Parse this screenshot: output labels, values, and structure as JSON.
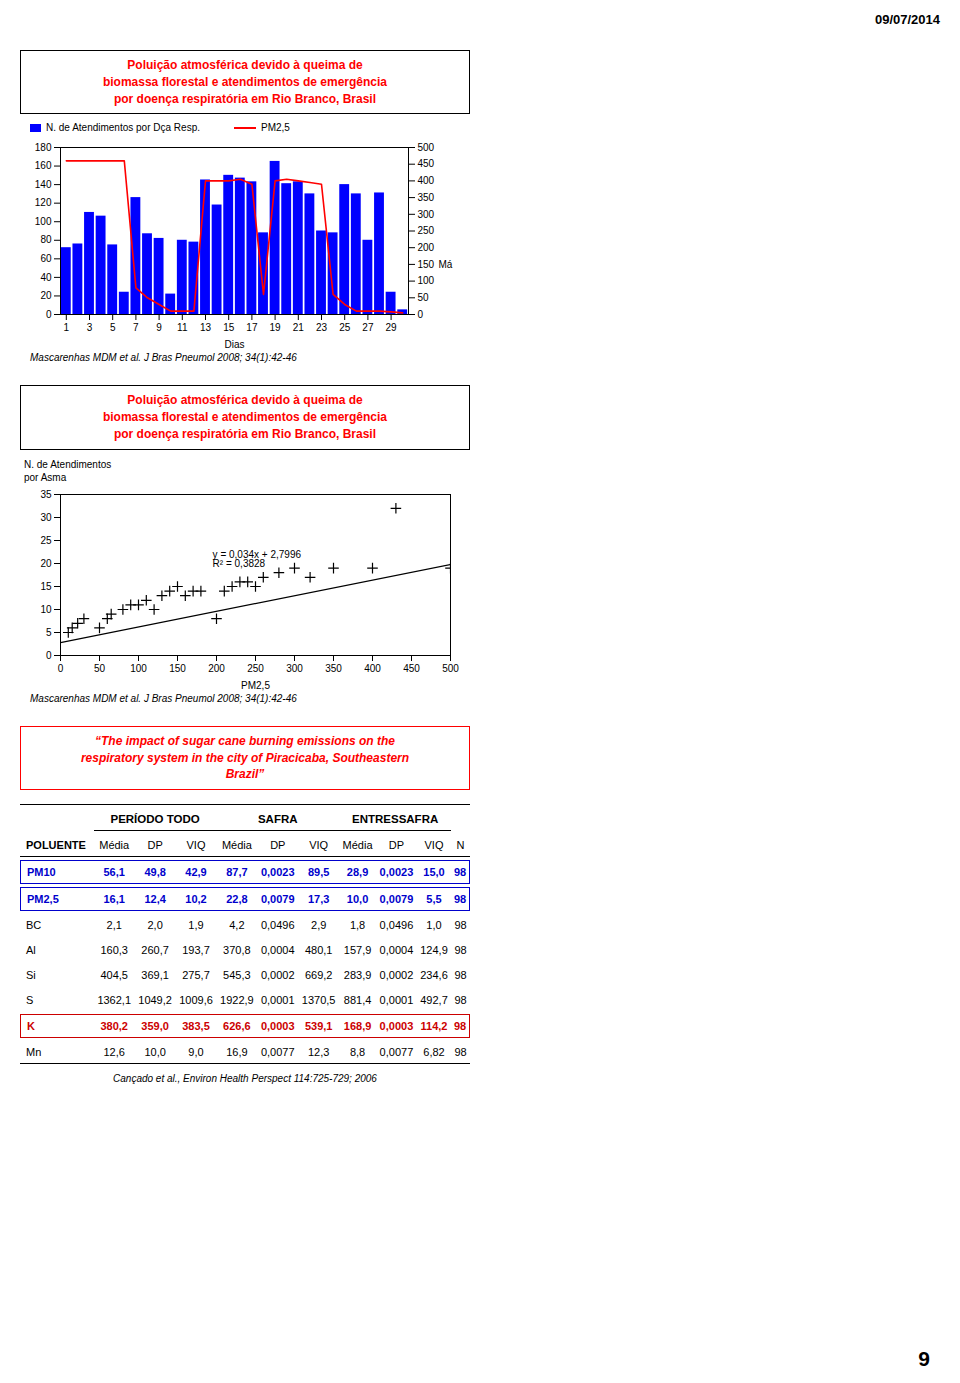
{
  "date": "09/07/2014",
  "page_number": "9",
  "chart_data": [
    {
      "type": "bar",
      "title": "Poluição atmosférica devido à queima de\nbiomassa florestal e atendimentos de emergência\npor doença respiratória em Rio Branco, Brasil",
      "xlabel": "Dias",
      "caption": "Mascarenhas MDM et al. J Bras Pneumol 2008; 34(1):42-46",
      "x": [
        1,
        2,
        3,
        4,
        5,
        6,
        7,
        8,
        9,
        10,
        11,
        12,
        13,
        14,
        15,
        16,
        17,
        18,
        19,
        20,
        21,
        22,
        23,
        24,
        25,
        26,
        27,
        28,
        29,
        30
      ],
      "xlim": [
        0.5,
        30.5
      ],
      "xticks": [
        1,
        3,
        5,
        7,
        9,
        11,
        13,
        15,
        17,
        19,
        21,
        23,
        25,
        27,
        29
      ],
      "ylim": [
        0,
        180
      ],
      "yticks": [
        0,
        20,
        40,
        60,
        80,
        100,
        120,
        140,
        160,
        180
      ],
      "y2lim": [
        0,
        500
      ],
      "y2ticks": [
        0,
        50,
        100,
        150,
        200,
        250,
        300,
        350,
        400,
        450,
        500
      ],
      "legend": "top",
      "series": [
        {
          "name": "N. de Atendimentos por Dça Resp.",
          "type": "bar",
          "color": "#0000FF",
          "values": [
            72,
            76,
            110,
            106,
            75,
            24,
            126,
            87,
            82,
            22,
            80,
            78,
            145,
            118,
            150,
            147,
            143,
            88,
            165,
            141,
            143,
            130,
            90,
            88,
            140,
            130,
            80,
            131,
            24,
            5
          ]
        },
        {
          "name": "PM2,5",
          "type": "line",
          "color": "#FF0000",
          "axis": "y2",
          "values": [
            460,
            460,
            460,
            460,
            460,
            460,
            80,
            50,
            30,
            10,
            10,
            10,
            400,
            400,
            400,
            405,
            390,
            60,
            400,
            405,
            400,
            395,
            390,
            60,
            30,
            10,
            10,
            10,
            8,
            5
          ]
        }
      ],
      "annotations": [
        {
          "text": "Má",
          "axis": "y2",
          "y": 150
        }
      ]
    },
    {
      "type": "scatter",
      "title": "Poluição atmosférica devido à queima de\nbiomassa florestal e atendimentos de emergência\npor doença respiratória em Rio Branco, Brasil",
      "xlabel": "PM2,5",
      "ylabel": "N. de Atendimentos\npor Asma",
      "caption": "Mascarenhas MDM et al. J Bras Pneumol 2008; 34(1):42-46",
      "xlim": [
        0,
        500
      ],
      "xticks": [
        0,
        50,
        100,
        150,
        200,
        250,
        300,
        350,
        400,
        450,
        500
      ],
      "ylim": [
        0,
        35
      ],
      "yticks": [
        0,
        5,
        10,
        15,
        20,
        25,
        30,
        35
      ],
      "series": [
        {
          "type": "scatter",
          "marker": "plus",
          "color": "#000000",
          "x": [
            10,
            15,
            22,
            30,
            50,
            60,
            65,
            80,
            90,
            100,
            110,
            120,
            130,
            140,
            150,
            160,
            170,
            180,
            200,
            210,
            220,
            230,
            240,
            250,
            260,
            280,
            300,
            320,
            350,
            400,
            430,
            500
          ],
          "values": [
            5,
            6,
            7,
            8,
            6,
            8,
            9,
            10,
            11,
            11,
            12,
            10,
            13,
            14,
            15,
            13,
            14,
            14,
            8,
            14,
            15,
            16,
            16,
            15,
            17,
            18,
            19,
            17,
            19,
            19,
            32,
            19
          ]
        },
        {
          "type": "line",
          "color": "#000000",
          "x": [
            0,
            500
          ],
          "values": [
            2.7996,
            19.7996
          ]
        }
      ],
      "annotations": [
        {
          "text": "y = 0,034x + 2,7996",
          "x": 195,
          "y": 22
        },
        {
          "text": "R² = 0,3828",
          "x": 195,
          "y": 20
        }
      ]
    },
    {
      "type": "table",
      "title": "“The impact of sugar cane burning emissions on the\nrespiratory system in the city of Piracicaba, Southeastern\nBrazil”",
      "column_groups": [
        "PERÍODO TODO",
        "SAFRA",
        "ENTRESSAFRA"
      ],
      "columns": [
        "POLUENTE",
        "Média",
        "DP",
        "VIQ",
        "Média",
        "DP",
        "VIQ",
        "Média",
        "DP",
        "VIQ",
        "N"
      ],
      "rows": [
        [
          "PM10",
          "56,1",
          "49,8",
          "42,9",
          "87,7",
          "0,0023",
          "89,5",
          "28,9",
          "0,0023",
          "15,0",
          "98"
        ],
        [
          "PM2,5",
          "16,1",
          "12,4",
          "10,2",
          "22,8",
          "0,0079",
          "17,3",
          "10,0",
          "0,0079",
          "5,5",
          "98"
        ],
        [
          "BC",
          "2,1",
          "2,0",
          "1,9",
          "4,2",
          "0,0496",
          "2,9",
          "1,8",
          "0,0496",
          "1,0",
          "98"
        ],
        [
          "Al",
          "160,3",
          "260,7",
          "193,7",
          "370,8",
          "0,0004",
          "480,1",
          "157,9",
          "0,0004",
          "124,9",
          "98"
        ],
        [
          "Si",
          "404,5",
          "369,1",
          "275,7",
          "545,3",
          "0,0002",
          "669,2",
          "283,9",
          "0,0002",
          "234,6",
          "98"
        ],
        [
          "S",
          "1362,1",
          "1049,2",
          "1009,6",
          "1922,9",
          "0,0001",
          "1370,5",
          "881,4",
          "0,0001",
          "492,7",
          "98"
        ],
        [
          "K",
          "380,2",
          "359,0",
          "383,5",
          "626,6",
          "0,0003",
          "539,1",
          "168,9",
          "0,0003",
          "114,2",
          "98"
        ],
        [
          "Mn",
          "12,6",
          "10,0",
          "9,0",
          "16,9",
          "0,0077",
          "12,3",
          "8,8",
          "0,0077",
          "6,82",
          "98"
        ]
      ],
      "colors": [
        "#0000CC",
        "#0000CC",
        "#000000",
        "#000000",
        "#000000",
        "#000000",
        "#CC0000",
        "#000000"
      ],
      "highlight_rows": [
        0,
        1,
        6
      ],
      "caption": "Cançado et al., Environ Health Perspect 114:725-729; 2006"
    }
  ]
}
